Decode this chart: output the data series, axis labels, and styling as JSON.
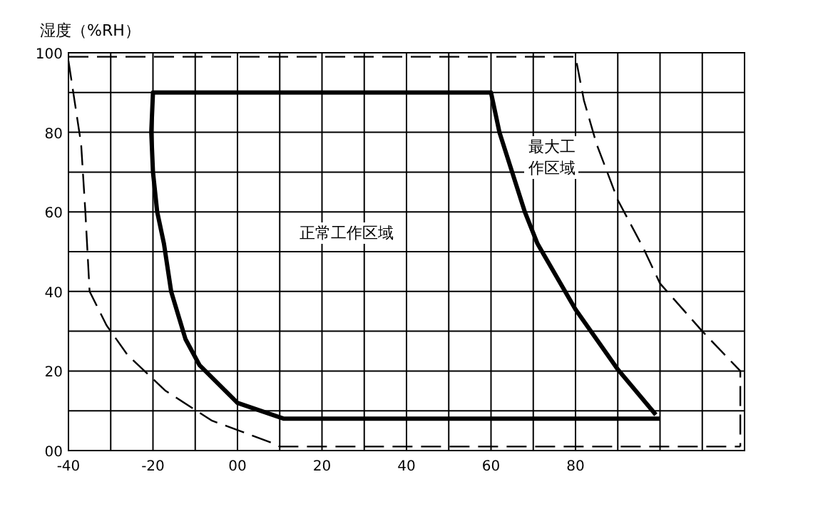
{
  "chart_data": {
    "type": "line",
    "ylabel": "湿度（%RH）",
    "xlim": [
      -40,
      120
    ],
    "ylim": [
      0,
      100
    ],
    "xticks": [
      -40,
      {
        "value": -30,
        "label": null
      },
      -20,
      {
        "value": -10,
        "label": null
      },
      {
        "value": 0,
        "label": "00"
      },
      {
        "value": 10,
        "label": null
      },
      20,
      {
        "value": 30,
        "label": null
      },
      40,
      {
        "value": 50,
        "label": null
      },
      60,
      {
        "value": 70,
        "label": null
      },
      80,
      {
        "value": 90,
        "label": null
      },
      {
        "value": 100,
        "label": null
      },
      {
        "value": 110,
        "label": null
      },
      {
        "value": 120,
        "label": null
      }
    ],
    "yticks": [
      {
        "value": 0,
        "label": "00"
      },
      {
        "value": 10,
        "label": null
      },
      20,
      {
        "value": 30,
        "label": null
      },
      40,
      {
        "value": 50,
        "label": null
      },
      60,
      {
        "value": 70,
        "label": null
      },
      80,
      {
        "value": 90,
        "label": null
      },
      100
    ],
    "grid": true,
    "marker": "none",
    "series": [
      {
        "color": "#000000",
        "line_style": "solid",
        "x": [
          100,
          11,
          0,
          -9,
          -12.3,
          -15.7,
          -17.4,
          -19,
          -20,
          -20.4,
          -20,
          60,
          62,
          65,
          68,
          71,
          80,
          90,
          99
        ],
        "values": [
          8,
          8,
          12,
          21.5,
          28,
          40,
          52,
          60,
          70,
          80,
          90,
          90,
          80,
          70,
          60,
          52,
          35.5,
          20.4,
          9
        ]
      },
      {
        "color": "#000000",
        "line_style": "dashed",
        "x": [
          -40,
          80,
          82,
          85,
          90,
          96,
          100,
          110,
          119,
          119
        ],
        "values": [
          99,
          99,
          88,
          77,
          63,
          51,
          42,
          30,
          20,
          1
        ]
      },
      {
        "color": "#000000",
        "line_style": "dashed",
        "x": [
          -40,
          -37,
          -36,
          -35,
          -31,
          -26,
          -17,
          -6,
          8,
          10,
          119
        ],
        "values": [
          98,
          77,
          60,
          40,
          31.5,
          24,
          15,
          7.5,
          2,
          1,
          1
        ]
      }
    ],
    "annotations": [
      "正常工作区域",
      "最大工作区域"
    ]
  }
}
